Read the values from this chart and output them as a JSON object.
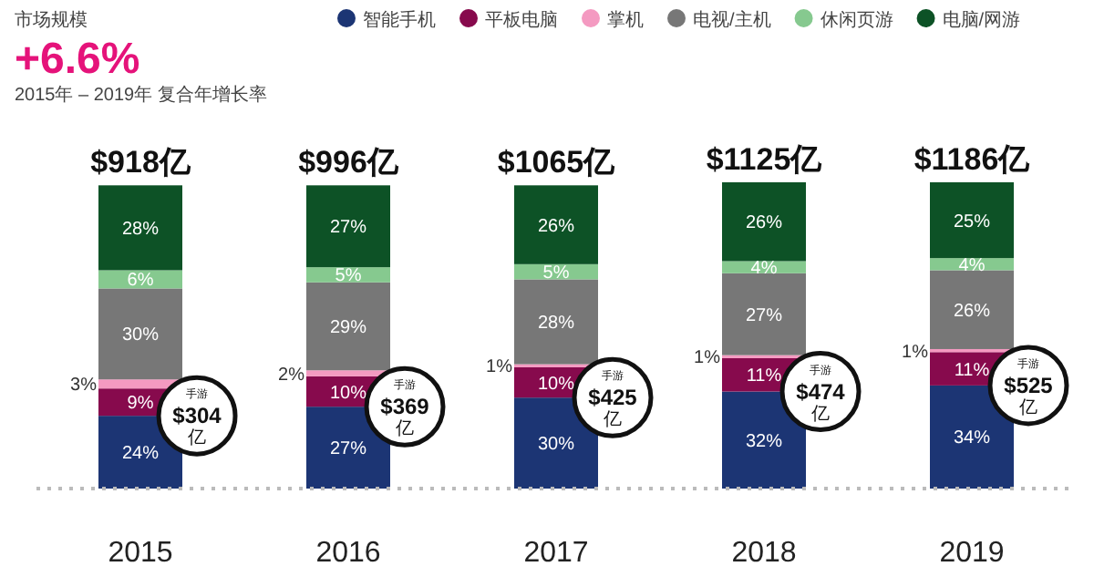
{
  "chart_data": {
    "type": "bar",
    "stacked": true,
    "title": "市场规模",
    "subtitle": "+6.6%",
    "categories": [
      "2015",
      "2016",
      "2017",
      "2018",
      "2019"
    ],
    "series": [
      {
        "name": "智能手机",
        "color": "#1c3574",
        "values": [
          24,
          27,
          30,
          32,
          34
        ],
        "value_labels": [
          "24%",
          "27%",
          "30%",
          "32%",
          "34%"
        ]
      },
      {
        "name": "平板电脑",
        "color": "#870a4d",
        "values": [
          9,
          10,
          10,
          11,
          11
        ],
        "value_labels": [
          "9%",
          "10%",
          "10%",
          "11%",
          "11%"
        ]
      },
      {
        "name": "掌机",
        "color": "#f49ac1",
        "values": [
          3,
          2,
          1,
          1,
          1
        ],
        "value_labels": [
          "3%",
          "2%",
          "1%",
          "1%",
          "1%"
        ]
      },
      {
        "name": "电视/主机",
        "color": "#777777",
        "values": [
          30,
          29,
          28,
          27,
          26
        ],
        "value_labels": [
          "30%",
          "29%",
          "28%",
          "27%",
          "26%"
        ]
      },
      {
        "name": "休闲页游",
        "color": "#86c98f",
        "values": [
          6,
          5,
          5,
          4,
          4
        ],
        "value_labels": [
          "6%",
          "5%",
          "5%",
          "4%",
          "4%"
        ]
      },
      {
        "name": "电脑/网游",
        "color": "#0d5226",
        "values": [
          28,
          27,
          26,
          26,
          25
        ],
        "value_labels": [
          "28%",
          "27%",
          "26%",
          "26%",
          "25%"
        ]
      }
    ],
    "ylim": [
      0,
      101
    ],
    "tick_labels": "x",
    "legend": "top",
    "ref_lines": [
      {
        "axis": "y",
        "value": 0,
        "color": "#bbbbbb",
        "line_style": "dotted"
      }
    ],
    "annotations": [
      "2015年 – 2019年 复合年增长率",
      {
        "text": "$918亿",
        "x": "2015",
        "y": 100
      },
      {
        "text": "$996亿",
        "x": "2016",
        "y": 100
      },
      {
        "text": "$1065亿",
        "x": "2017",
        "y": 100
      },
      {
        "text": "$1125亿",
        "x": "2018",
        "y": 101
      },
      {
        "text": "$1186亿",
        "x": "2019",
        "y": 101
      },
      {
        "text": "手游\n$304\n亿",
        "x": "2015",
        "y": 24
      },
      {
        "text": "手游\n$369\n亿",
        "x": "2016",
        "y": 27
      },
      {
        "text": "手游\n$425\n亿",
        "x": "2017",
        "y": 30
      },
      {
        "text": "手游\n$474\n亿",
        "x": "2018",
        "y": 32
      },
      {
        "text": "手游\n$525\n亿",
        "x": "2019",
        "y": 34
      }
    ]
  }
}
